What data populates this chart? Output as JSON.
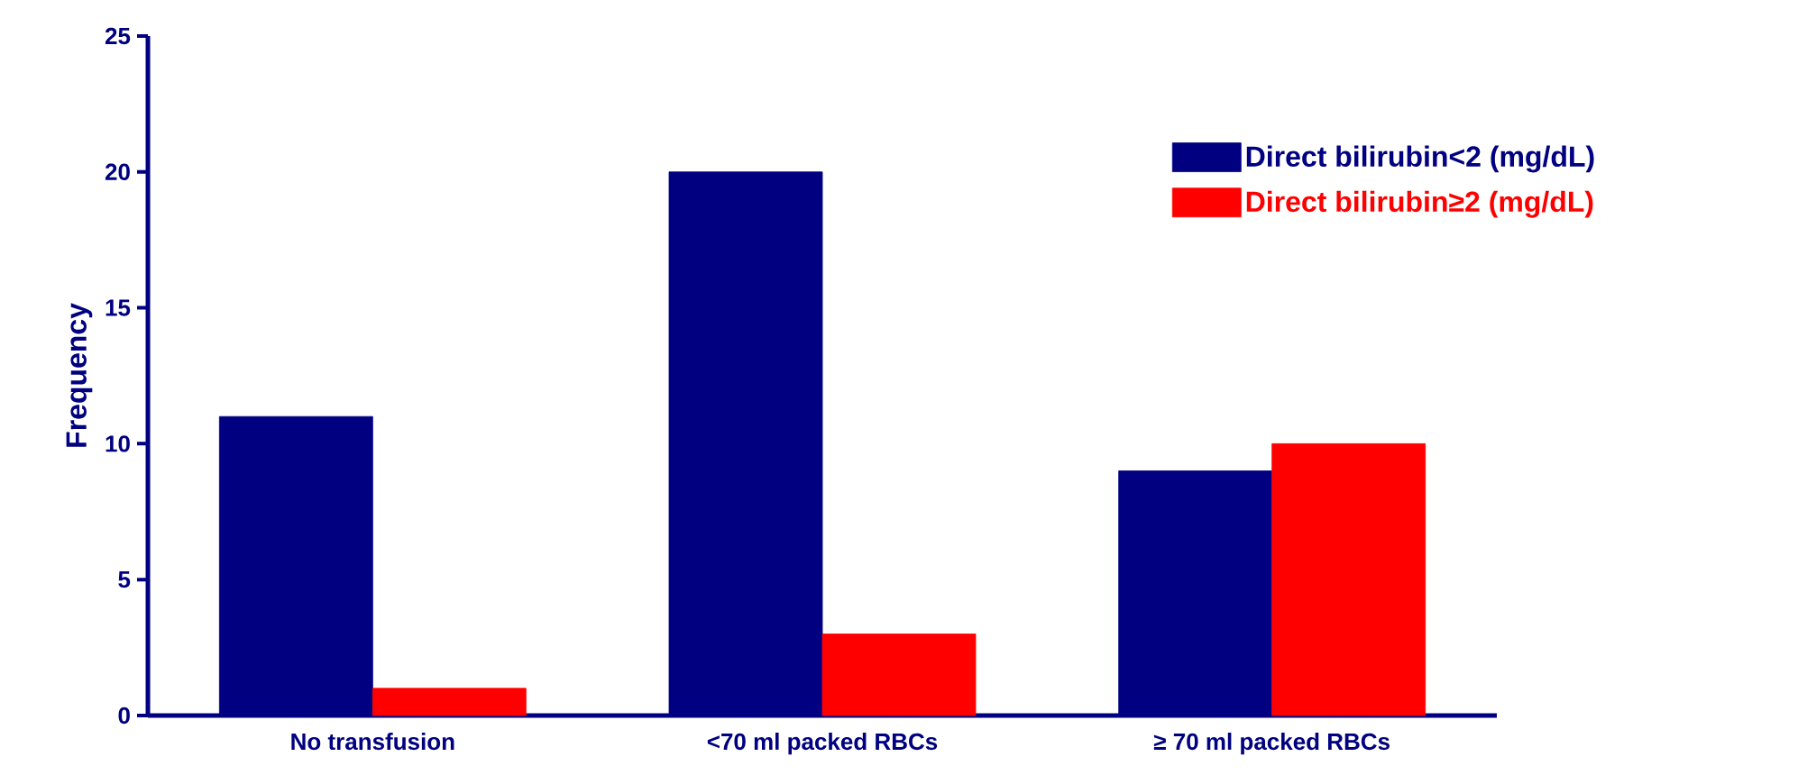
{
  "chart_data": {
    "type": "bar",
    "ylabel": "Frequency",
    "categories": [
      "No transfusion",
      "<70 ml packed RBCs",
      "≥ 70 ml packed RBCs"
    ],
    "series": [
      {
        "name": "Direct bilirubin<2 (mg/dL)",
        "color": "#000080",
        "values": [
          11,
          20,
          9
        ]
      },
      {
        "name": "Direct bilirubin≥2 (mg/dL)",
        "color": "#ff0000",
        "values": [
          1,
          3,
          10
        ]
      }
    ],
    "ylim": [
      0,
      25
    ],
    "yticks": [
      0,
      5,
      10,
      15,
      20,
      25
    ],
    "grid": false,
    "legend": "top right"
  }
}
